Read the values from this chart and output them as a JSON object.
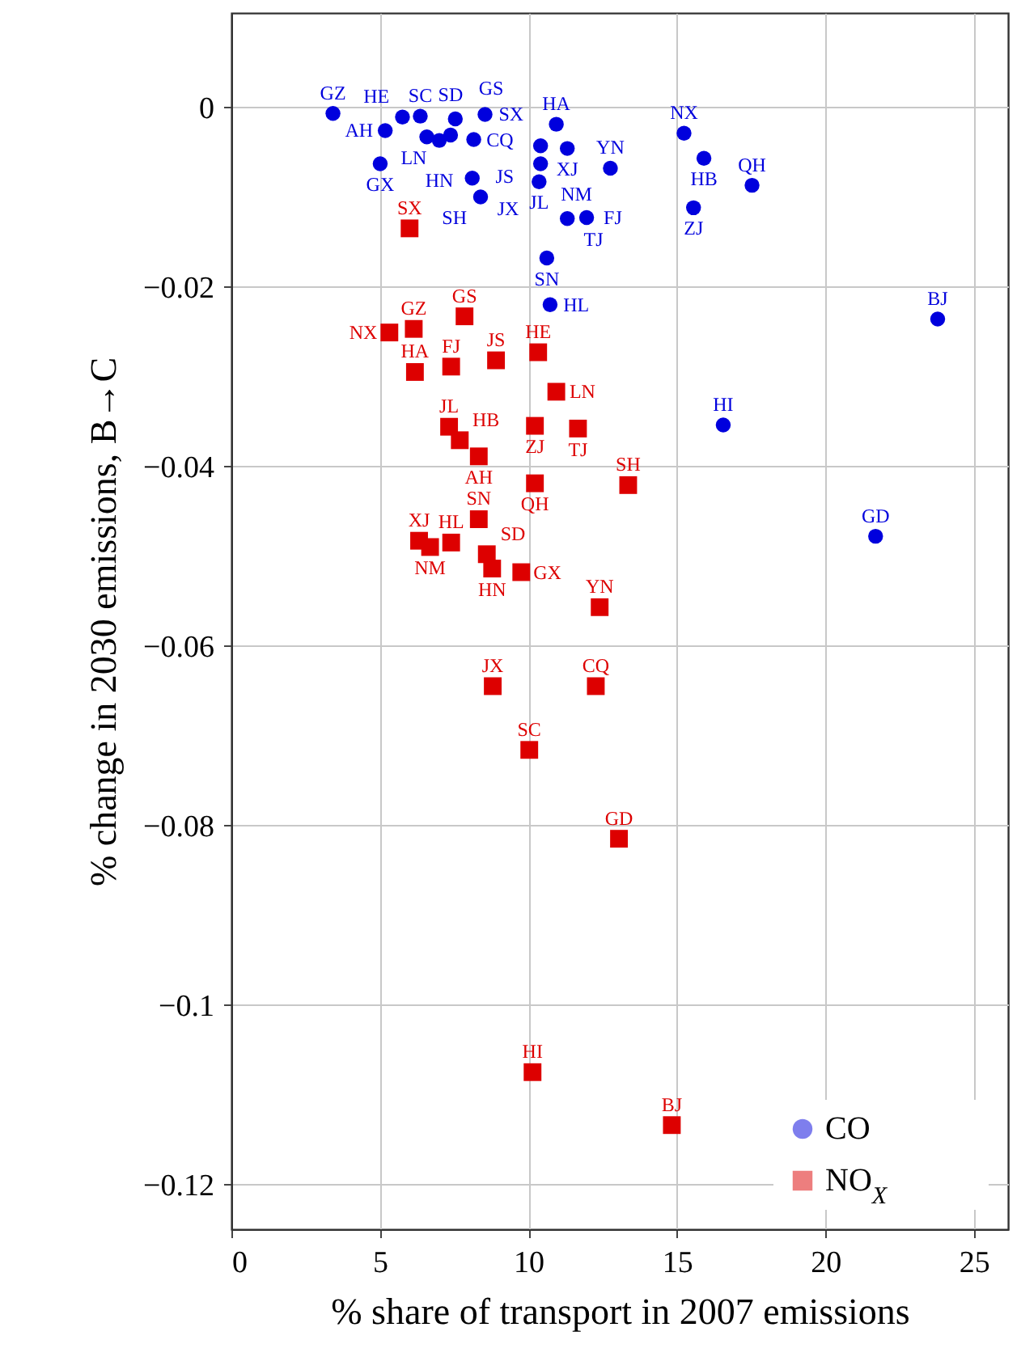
{
  "chart_data": {
    "type": "scatter",
    "xlabel": "% share of transport in 2007 emissions",
    "ylabel": "% change in 2030 emissions, B→C",
    "xlim": [
      0,
      26.15
    ],
    "xticks": [
      0,
      5,
      10,
      15,
      20,
      25
    ],
    "ylim": [
      -0.125,
      0.0105
    ],
    "yticks": [
      {
        "value": -0.12,
        "label": "−0.12"
      },
      {
        "value": -0.1,
        "label": "−0.1"
      },
      {
        "value": -0.08,
        "label": "−0.08"
      },
      {
        "value": -0.06,
        "label": "−0.06"
      },
      {
        "value": -0.04,
        "label": "−0.04"
      },
      {
        "value": -0.02,
        "label": "−0.02"
      },
      0
    ],
    "grid": true,
    "legend": "bottom right",
    "series": [
      {
        "name": "CO",
        "color": "#0000dd",
        "marker": "circle",
        "x": [
          3.42,
          5.18,
          5.01,
          5.76,
          6.36,
          6.58,
          7.0,
          7.38,
          7.54,
          8.54,
          8.16,
          8.11,
          8.39,
          10.41,
          10.94,
          11.31,
          10.41,
          10.36,
          12.76,
          11.31,
          11.96,
          10.62,
          10.73,
          15.24,
          15.91,
          17.53,
          15.56,
          23.78,
          16.56,
          21.69
        ],
        "values": [
          -0.0007,
          -0.0026,
          -0.0063,
          -0.0011,
          -0.001,
          -0.0033,
          -0.0037,
          -0.0031,
          -0.0013,
          -0.0008,
          -0.0036,
          -0.0079,
          -0.01,
          -0.0043,
          -0.0019,
          -0.0046,
          -0.0063,
          -0.0083,
          -0.0068,
          -0.0124,
          -0.0123,
          -0.0168,
          -0.022,
          -0.0029,
          -0.0057,
          -0.0087,
          -0.0112,
          -0.0236,
          -0.0354,
          -0.0478
        ],
        "value_labels": [
          "GZ",
          "AH",
          "GX",
          "HE",
          "SC",
          "LN",
          "HN",
          "SD",
          "GS",
          "SX",
          "CQ",
          "JX",
          "SH",
          "JS",
          "HA",
          "XJ",
          "NM",
          "JL",
          "YN",
          "TJ",
          "FJ",
          "SN",
          "HL",
          "NX",
          "HB",
          "QH",
          "ZJ",
          "BJ",
          "HI",
          "GD"
        ]
      },
      {
        "name": "NO$_{X}$",
        "color": "#dd0000",
        "marker": "square",
        "x": [
          6.0,
          5.32,
          6.14,
          6.18,
          7.85,
          7.4,
          8.91,
          10.33,
          10.94,
          10.22,
          11.67,
          7.33,
          7.69,
          8.33,
          10.22,
          13.36,
          8.33,
          6.32,
          6.69,
          7.4,
          8.6,
          8.78,
          9.76,
          12.4,
          8.8,
          12.27,
          10.03,
          13.05,
          10.14,
          14.83
        ],
        "values": [
          -0.0135,
          -0.0251,
          -0.0247,
          -0.0295,
          -0.0233,
          -0.0289,
          -0.0282,
          -0.0273,
          -0.0317,
          -0.0355,
          -0.0358,
          -0.0356,
          -0.0371,
          -0.0389,
          -0.0419,
          -0.0421,
          -0.0459,
          -0.0483,
          -0.049,
          -0.0485,
          -0.0498,
          -0.0514,
          -0.0518,
          -0.0557,
          -0.0645,
          -0.0645,
          -0.0716,
          -0.0815,
          -0.1075,
          -0.1134
        ],
        "value_labels": [
          "SX",
          "NX",
          "GZ",
          "HA",
          "GS",
          "FJ",
          "JS",
          "HE",
          "LN",
          "ZJ",
          "TJ",
          "JL",
          "HB",
          "AH",
          "QH",
          "SH",
          "SN",
          "XJ",
          "NM",
          "HL",
          "SD",
          "HN",
          "GX",
          "YN",
          "JX",
          "CQ",
          "SC",
          "GD",
          "HI",
          "BJ"
        ]
      }
    ]
  }
}
